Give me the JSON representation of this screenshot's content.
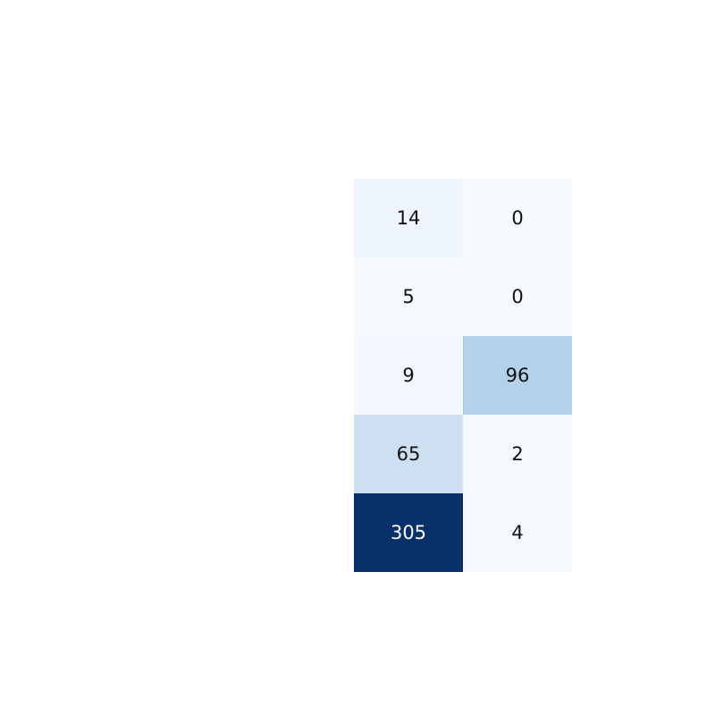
{
  "chart_data": {
    "type": "heatmap",
    "rows": 5,
    "cols": 2,
    "values": [
      [
        14,
        0
      ],
      [
        5,
        0
      ],
      [
        9,
        96
      ],
      [
        65,
        2
      ],
      [
        305,
        4
      ]
    ],
    "colormap": [
      "#f7fbff",
      "#deebf7",
      "#c6dbef",
      "#9ecae1",
      "#6baed6",
      "#4292c6",
      "#2171b5",
      "#08519c",
      "#08306b"
    ],
    "vmin": 0,
    "vmax": 305,
    "grid": false,
    "legend": "none"
  }
}
